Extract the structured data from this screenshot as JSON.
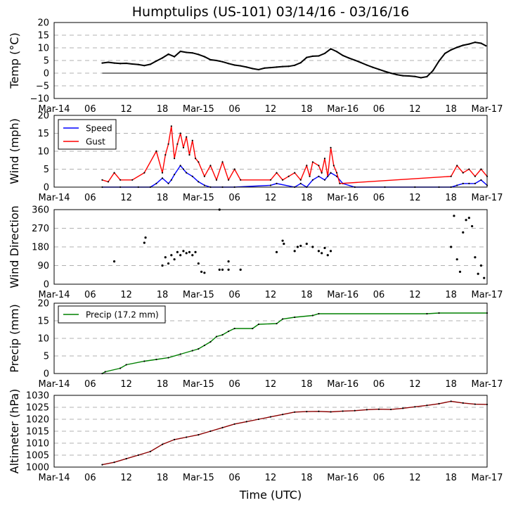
{
  "page": {
    "title": "Humptulips (US-101) 03/14/16 - 03/16/16",
    "xlabel": "Time (UTC)"
  },
  "colors": {
    "temp": "#000000",
    "speed": "#0000ff",
    "gust": "#ff0000",
    "direction_line": "#ffa500",
    "direction_point": "#000000",
    "precip": "#008000",
    "altimeter": "#8b0000",
    "grid": "#b0b0b0"
  },
  "chart_data": [
    {
      "type": "line",
      "id": "temp",
      "ylabel": "Temp ($^\\circ$C)",
      "ylabel_display": "Temp (°C)",
      "ylim": [
        -10,
        20
      ],
      "yticks": [
        -10,
        -5,
        0,
        5,
        10,
        15,
        20
      ],
      "ytick_labels": [
        "−10",
        "−5",
        "0",
        "5",
        "10",
        "15",
        "20"
      ],
      "xlim": [
        0,
        72
      ],
      "xticks": [
        0,
        6,
        12,
        18,
        24,
        30,
        36,
        42,
        48,
        54,
        60,
        66,
        72
      ],
      "xtick_labels": [
        "Mar-14",
        "06",
        "12",
        "18",
        "Mar-15",
        "06",
        "12",
        "18",
        "Mar-16",
        "06",
        "12",
        "18",
        "Mar-17"
      ],
      "grid": "horizontal dashed",
      "zero_line": true,
      "series": [
        {
          "x": [
            8,
            9,
            10,
            11,
            12,
            13,
            14,
            15,
            16,
            17,
            18,
            19,
            20,
            21,
            22,
            23,
            24,
            25,
            26,
            27,
            28,
            29,
            30,
            31,
            32,
            33,
            34,
            35,
            36,
            37,
            38,
            39,
            40,
            41,
            42,
            43,
            44,
            45,
            46,
            47,
            48,
            49,
            50,
            51,
            52,
            53,
            54,
            55,
            56,
            57,
            58,
            59,
            60,
            61,
            62,
            63,
            64,
            65,
            66,
            67,
            68,
            69,
            70,
            71,
            71.8
          ],
          "values": [
            4.0,
            4.3,
            4.0,
            3.8,
            3.9,
            3.6,
            3.4,
            3.0,
            3.5,
            4.8,
            6.0,
            7.5,
            6.5,
            8.6,
            8.2,
            8.0,
            7.4,
            6.5,
            5.3,
            5.0,
            4.5,
            3.8,
            3.2,
            2.9,
            2.4,
            1.8,
            1.4,
            2.0,
            2.2,
            2.4,
            2.6,
            2.7,
            3.1,
            4.1,
            6.2,
            6.7,
            6.8,
            7.8,
            9.6,
            8.5,
            7.0,
            6.0,
            5.1,
            4.2,
            3.2,
            2.3,
            1.5,
            0.7,
            0.0,
            -0.6,
            -1.0,
            -1.1,
            -1.3,
            -1.8,
            -1.4,
            1.0,
            4.8,
            7.8,
            9.2,
            10.2,
            11.0,
            11.5,
            12.2,
            11.8,
            10.8
          ]
        }
      ]
    },
    {
      "type": "line",
      "id": "wind",
      "ylabel": "Wind (mph)",
      "ylim": [
        0,
        20
      ],
      "yticks": [
        0,
        5,
        10,
        15,
        20
      ],
      "ytick_labels": [
        "0",
        "5",
        "10",
        "15",
        "20"
      ],
      "legend_position": "top-left",
      "series": [
        {
          "name": "Speed",
          "x": [
            8,
            11,
            14,
            16,
            17,
            18,
            19,
            19.5,
            20,
            21,
            21.5,
            22,
            23,
            24,
            25,
            26,
            28,
            30,
            36,
            37,
            40,
            41,
            42,
            43,
            44,
            45,
            46,
            47,
            48,
            50,
            55,
            60,
            64,
            66,
            67,
            68,
            69,
            70,
            71,
            72
          ],
          "values": [
            0,
            0,
            0,
            0,
            1,
            2.5,
            1,
            2,
            3.5,
            6,
            5,
            4,
            3,
            1.5,
            0.5,
            0,
            0,
            0,
            0.5,
            1,
            0,
            1,
            0,
            2,
            3,
            2,
            4,
            3,
            1,
            0,
            0,
            0,
            0,
            0,
            0.5,
            1,
            1,
            1,
            2,
            0.5
          ]
        },
        {
          "name": "Gust",
          "x": [
            8,
            9,
            10,
            11,
            13,
            15,
            17,
            18,
            18.5,
            19,
            19.5,
            20,
            20.5,
            21,
            21.5,
            22,
            22.5,
            23,
            23.5,
            24,
            25,
            26,
            27,
            28,
            29,
            30,
            31,
            36,
            37,
            38,
            39,
            40,
            41,
            42,
            42.5,
            43,
            44,
            44.5,
            45,
            45.5,
            46,
            46.5,
            47,
            47.5,
            66,
            67,
            68,
            69,
            70,
            71,
            72
          ],
          "values": [
            2,
            1.5,
            4,
            2,
            2,
            4,
            10,
            4,
            9,
            12,
            17,
            8,
            12,
            15,
            11,
            14,
            9,
            13,
            8,
            7,
            3,
            6,
            2,
            7,
            2,
            5,
            2,
            2,
            4,
            2,
            3,
            4,
            2,
            6,
            3,
            7,
            6,
            4,
            8,
            3,
            11,
            6,
            4,
            1,
            3,
            6,
            4,
            5,
            3,
            5,
            3
          ]
        }
      ]
    },
    {
      "type": "scatter",
      "id": "direction",
      "ylabel": "Wind Direction",
      "ylim": [
        0,
        360
      ],
      "yticks": [
        0,
        90,
        180,
        270,
        360
      ],
      "ytick_labels": [
        "0",
        "90",
        "180",
        "270",
        "360"
      ],
      "series": [
        {
          "x": [
            10,
            15,
            15.2,
            18,
            18.5,
            19,
            19.5,
            20,
            20.5,
            21,
            21.5,
            22,
            22.5,
            23,
            23.5,
            24,
            24.5,
            25,
            27.5,
            27.5,
            28,
            29,
            29,
            31,
            37,
            38,
            38.2,
            40,
            40.5,
            41,
            42,
            43,
            44,
            44.5,
            45,
            45.5,
            46,
            66,
            66.5,
            67,
            67.5,
            68,
            68.5,
            69,
            69.5,
            70,
            70.5,
            71,
            71.5
          ],
          "values": [
            110,
            200,
            225,
            90,
            130,
            100,
            140,
            120,
            155,
            140,
            160,
            150,
            155,
            140,
            155,
            100,
            60,
            55,
            360,
            70,
            70,
            110,
            70,
            70,
            155,
            210,
            195,
            160,
            180,
            185,
            195,
            180,
            160,
            150,
            175,
            140,
            160,
            180,
            330,
            120,
            60,
            250,
            310,
            320,
            280,
            130,
            50,
            90,
            30
          ]
        }
      ]
    },
    {
      "type": "line",
      "id": "precip",
      "ylabel": "Precip (mm)",
      "ylim": [
        0,
        20
      ],
      "yticks": [
        0,
        5,
        10,
        15,
        20
      ],
      "ytick_labels": [
        "0",
        "5",
        "10",
        "15",
        "20"
      ],
      "legend_position": "top-left",
      "series": [
        {
          "name": "Precip (17.2 mm)",
          "x": [
            8,
            8.5,
            11,
            12,
            15,
            17,
            19,
            21,
            23,
            24,
            25,
            26,
            27,
            28,
            29,
            30,
            33,
            34,
            37,
            38,
            40,
            43,
            44,
            62,
            64,
            72
          ],
          "values": [
            0,
            0.5,
            1.5,
            2.5,
            3.5,
            4,
            4.5,
            5.5,
            6.5,
            7,
            8,
            9,
            10.5,
            11,
            12,
            12.8,
            12.8,
            14,
            14.2,
            15.5,
            16,
            16.5,
            17,
            17,
            17.2,
            17.2
          ]
        }
      ]
    },
    {
      "type": "line",
      "id": "altimeter",
      "ylabel": "Altimeter (hPa)",
      "ylim": [
        1000,
        1030
      ],
      "yticks": [
        1000,
        1005,
        1010,
        1015,
        1020,
        1025,
        1030
      ],
      "ytick_labels": [
        "1000",
        "1005",
        "1010",
        "1015",
        "1020",
        "1025",
        "1030"
      ],
      "series": [
        {
          "x": [
            8,
            10,
            12,
            14,
            16,
            18,
            20,
            22,
            24,
            26,
            28,
            30,
            32,
            34,
            36,
            38,
            40,
            42,
            44,
            46,
            48,
            50,
            52,
            54,
            56,
            58,
            60,
            62,
            64,
            66,
            68,
            70,
            72
          ],
          "values": [
            1001,
            1002,
            1003.5,
            1005,
            1006.5,
            1009.5,
            1011.5,
            1012.5,
            1013.5,
            1015,
            1016.5,
            1018,
            1019,
            1020,
            1021,
            1022,
            1023,
            1023.2,
            1023.3,
            1023.1,
            1023.4,
            1023.6,
            1024,
            1024.2,
            1024.1,
            1024.6,
            1025.2,
            1025.8,
            1026.5,
            1027.5,
            1026.8,
            1026.3,
            1026.2
          ]
        }
      ]
    }
  ]
}
